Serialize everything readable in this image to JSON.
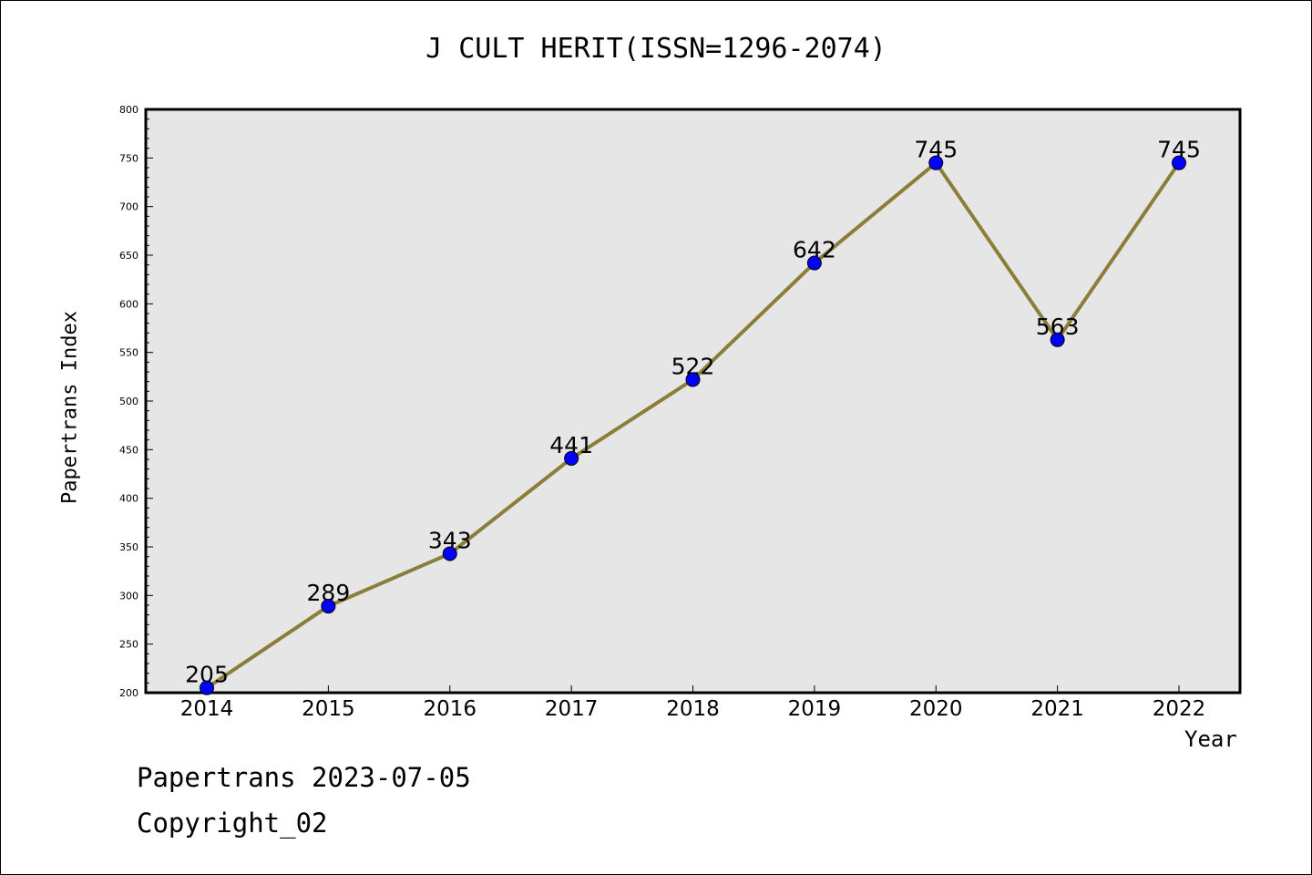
{
  "chart_data": {
    "type": "line",
    "title": "J CULT HERIT(ISSN=1296-2074)",
    "xlabel": "Year",
    "ylabel": "Papertrans Index",
    "categories": [
      "2014",
      "2015",
      "2016",
      "2017",
      "2018",
      "2019",
      "2020",
      "2021",
      "2022"
    ],
    "series": [
      {
        "values": [
          205,
          289,
          343,
          441,
          522,
          642,
          745,
          563,
          745
        ]
      }
    ],
    "data_labels": [
      "205",
      "289",
      "343",
      "441",
      "522",
      "642",
      "745",
      "563",
      "745"
    ],
    "ylim": [
      200,
      800
    ],
    "yticks": [
      200,
      250,
      300,
      350,
      400,
      450,
      500,
      550,
      600,
      650,
      700,
      750,
      800
    ],
    "grid": false,
    "plot_background": "#e6e6e6",
    "line_color": "#8b7d3a",
    "marker_color": "#0000ff"
  },
  "footer": {
    "date_text": "Papertrans 2023-07-05",
    "copyright_text": "Copyright_02"
  }
}
